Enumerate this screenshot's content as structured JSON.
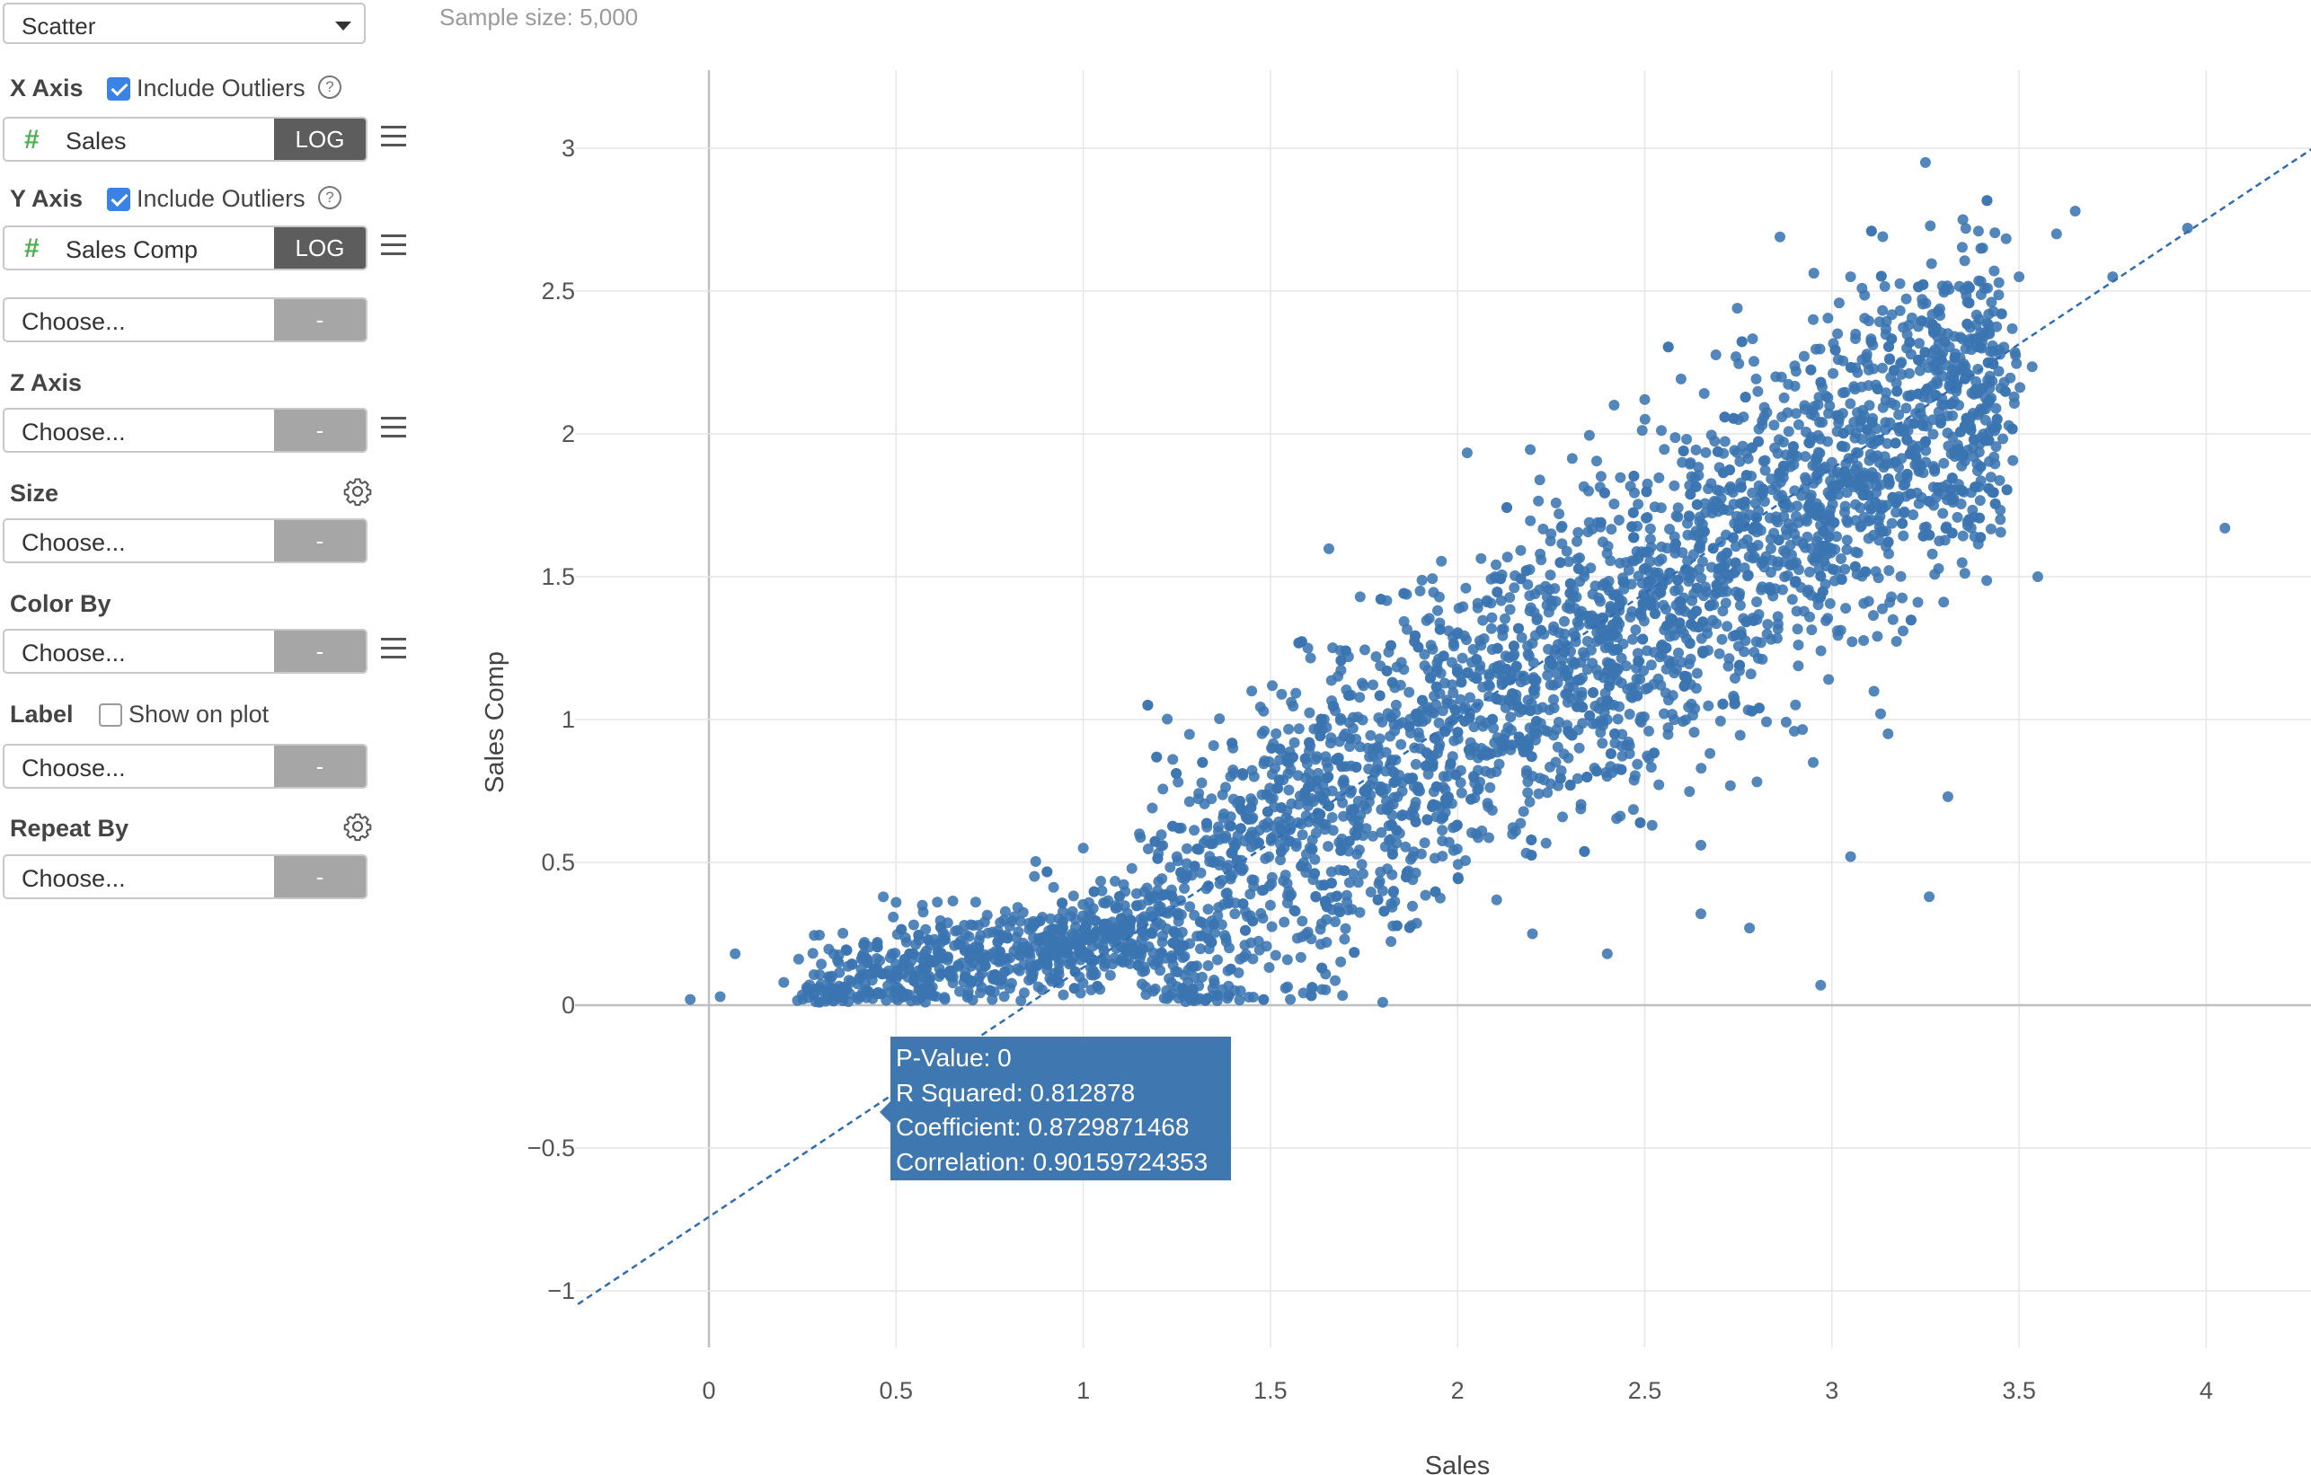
{
  "sidebar": {
    "chart_type": "Scatter",
    "x_axis": {
      "label": "X Axis",
      "include_outliers": "Include Outliers",
      "checked": true,
      "column": "Sales",
      "scale_button": "LOG"
    },
    "y_axis": {
      "label": "Y Axis",
      "include_outliers": "Include Outliers",
      "checked": true,
      "column": "Sales Comp",
      "scale_button": "LOG"
    },
    "extra_y": {
      "placeholder": "Choose...",
      "button": "-"
    },
    "z_axis": {
      "label": "Z Axis",
      "placeholder": "Choose...",
      "button": "-"
    },
    "size": {
      "label": "Size",
      "placeholder": "Choose...",
      "button": "-"
    },
    "color_by": {
      "label": "Color By",
      "placeholder": "Choose...",
      "button": "-"
    },
    "label": {
      "label": "Label",
      "show_on_plot": "Show on plot",
      "checked": false,
      "placeholder": "Choose...",
      "button": "-"
    },
    "repeat_by": {
      "label": "Repeat By",
      "placeholder": "Choose...",
      "button": "-"
    },
    "help_glyph": "?",
    "column_type_glyph": "#"
  },
  "header": {
    "sample_size": "Sample size: 5,000"
  },
  "tooltip": {
    "p_value": "P-Value: 0",
    "r_squared": "R Squared: 0.812878",
    "coefficient": "Coefficient: 0.8729871468",
    "correlation": "Correlation: 0.90159724353"
  },
  "colors": {
    "point": "#3b75b0",
    "trend": "#2f6db5",
    "grid": "#e6e6e6",
    "zero_line": "#bfbfbf",
    "accent_check": "#3b82e6",
    "number_type": "#4caf50"
  },
  "chart_data": {
    "type": "scatter",
    "xlabel": "Sales",
    "ylabel": "Sales Comp",
    "xlim": [
      -0.35,
      4.3
    ],
    "ylim": [
      -1.05,
      3.2
    ],
    "xticks": [
      "0",
      "0.5",
      "1",
      "1.5",
      "2",
      "2.5",
      "3",
      "3.5",
      "4"
    ],
    "yticks": [
      "−1",
      "−0.5",
      "0",
      "0.5",
      "1",
      "1.5",
      "2",
      "2.5",
      "3"
    ],
    "grid": true,
    "series": [
      {
        "values_note": "",
        "points": [
          [
            -0.05,
            0.02
          ],
          [
            0.03,
            0.03
          ],
          [
            0.07,
            0.18
          ],
          [
            0.2,
            0.08
          ],
          [
            0.32,
            0.1
          ],
          [
            0.45,
            0.22
          ],
          [
            0.5,
            0.36
          ],
          [
            0.57,
            0.35
          ],
          [
            0.62,
            0.18
          ],
          [
            0.72,
            0.28
          ],
          [
            0.83,
            0.12
          ],
          [
            0.92,
            0.24
          ],
          [
            1.0,
            0.55
          ],
          [
            1.05,
            0.4
          ],
          [
            1.15,
            0.6
          ],
          [
            1.2,
            0.15
          ],
          [
            1.25,
            0.52
          ],
          [
            1.28,
            0.08
          ],
          [
            1.35,
            0.58
          ],
          [
            1.4,
            0.9
          ],
          [
            1.45,
            1.1
          ],
          [
            1.5,
            0.35
          ],
          [
            1.55,
            0.85
          ],
          [
            1.6,
            1.25
          ],
          [
            1.65,
            0.22
          ],
          [
            1.7,
            0.95
          ],
          [
            1.75,
            0.7
          ],
          [
            1.8,
            0.4
          ],
          [
            1.8,
            0.01
          ],
          [
            1.85,
            1.2
          ],
          [
            1.9,
            1.45
          ],
          [
            1.95,
            0.9
          ],
          [
            2.0,
            1.3
          ],
          [
            2.05,
            0.6
          ],
          [
            2.1,
            1.5
          ],
          [
            2.15,
            1.05
          ],
          [
            2.2,
            0.25
          ],
          [
            2.25,
            1.65
          ],
          [
            2.3,
            0.95
          ],
          [
            2.35,
            1.8
          ],
          [
            2.4,
            1.2
          ],
          [
            2.45,
            1.55
          ],
          [
            2.5,
            2.12
          ],
          [
            2.55,
            1.4
          ],
          [
            2.6,
            1.9
          ],
          [
            2.65,
            0.32
          ],
          [
            2.7,
            1.75
          ],
          [
            2.75,
            2.05
          ],
          [
            2.8,
            1.35
          ],
          [
            2.85,
            2.2
          ],
          [
            2.9,
            1.65
          ],
          [
            2.95,
            2.4
          ],
          [
            3.0,
            1.9
          ],
          [
            3.05,
            2.55
          ],
          [
            3.1,
            2.1
          ],
          [
            3.15,
            0.95
          ],
          [
            3.2,
            2.3
          ],
          [
            3.25,
            2.95
          ],
          [
            3.3,
            2.1
          ],
          [
            3.35,
            2.75
          ],
          [
            3.4,
            2.3
          ],
          [
            3.45,
            1.7
          ],
          [
            3.5,
            2.55
          ],
          [
            3.55,
            1.5
          ],
          [
            3.6,
            2.7
          ],
          [
            3.65,
            2.78
          ],
          [
            3.75,
            2.55
          ],
          [
            3.95,
            2.72
          ],
          [
            4.05,
            1.67
          ],
          [
            3.26,
            0.38
          ],
          [
            2.97,
            0.07
          ],
          [
            3.31,
            0.73
          ],
          [
            3.19,
            1.31
          ],
          [
            2.78,
            0.27
          ],
          [
            2.65,
            0.56
          ],
          [
            2.95,
            0.85
          ],
          [
            3.05,
            0.52
          ],
          [
            3.13,
            1.02
          ],
          [
            1.88,
            0.52
          ],
          [
            2.4,
            0.18
          ]
        ]
      }
    ],
    "trendline": {
      "slope": 0.8729871468,
      "intercept": -0.741,
      "from_x": -0.35,
      "to_x": 4.3
    },
    "annotations": [
      "P-Value: 0",
      "R Squared: 0.812878",
      "Coefficient: 0.8729871468",
      "Correlation: 0.90159724353"
    ]
  }
}
